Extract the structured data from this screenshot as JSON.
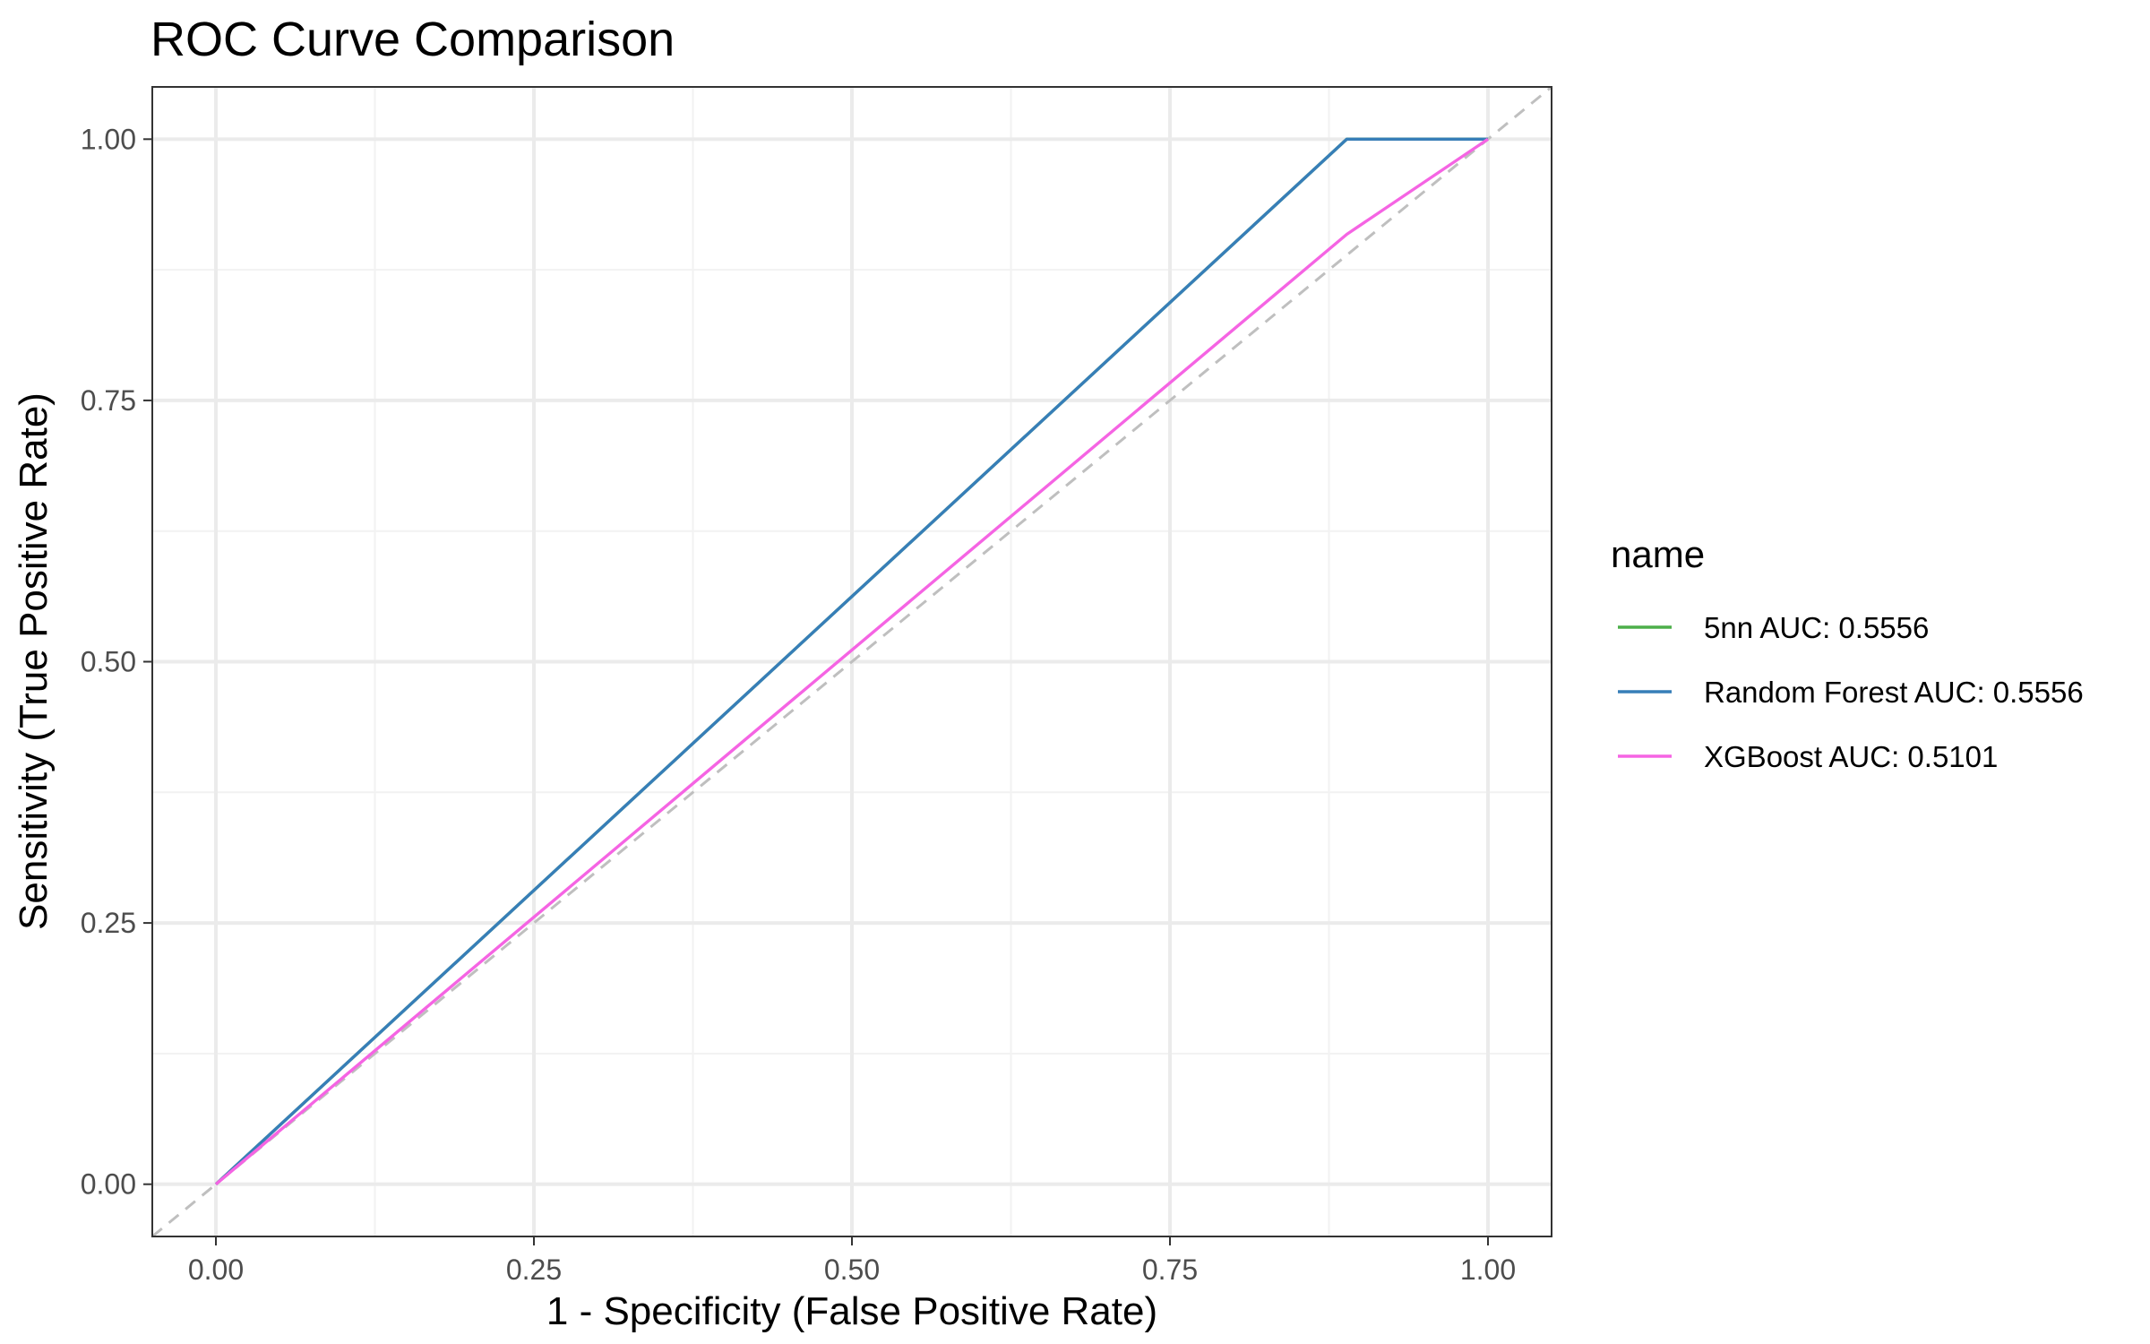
{
  "chart_data": {
    "type": "line",
    "title": "ROC Curve Comparison",
    "xlabel": "1 - Specificity (False Positive Rate)",
    "ylabel": "Sensitivity (True Positive Rate)",
    "xlim": [
      -0.05,
      1.05
    ],
    "ylim": [
      -0.05,
      1.05
    ],
    "x_ticks": [
      "0.00",
      "0.25",
      "0.50",
      "0.75",
      "1.00"
    ],
    "y_ticks": [
      "0.00",
      "0.25",
      "0.50",
      "0.75",
      "1.00"
    ],
    "grid": true,
    "legend": {
      "title": "name",
      "position": "right"
    },
    "reference_line": {
      "style": "dashed",
      "color": "#bfbfbf",
      "x": [
        -0.05,
        1.05
      ],
      "y": [
        -0.05,
        1.05
      ]
    },
    "series": [
      {
        "name": "5nn AUC: 0.5556",
        "color": "#4daf4a",
        "x": [
          0.0,
          0.889,
          1.0
        ],
        "y": [
          0.0,
          1.0,
          1.0
        ]
      },
      {
        "name": "Random Forest AUC: 0.5556",
        "color": "#377eb8",
        "x": [
          0.0,
          0.889,
          1.0
        ],
        "y": [
          0.0,
          1.0,
          1.0
        ]
      },
      {
        "name": "XGBoost AUC: 0.5101",
        "color": "#f564e3",
        "x": [
          0.0,
          0.889,
          1.0
        ],
        "y": [
          0.0,
          0.909,
          1.0
        ]
      }
    ]
  }
}
